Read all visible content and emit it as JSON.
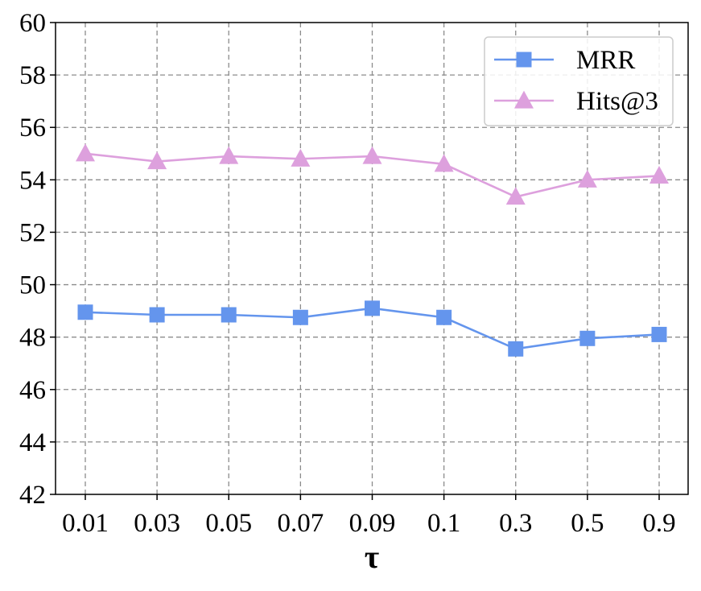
{
  "chart_data": {
    "type": "line",
    "title": "",
    "xlabel": "τ",
    "ylabel": "",
    "categories": [
      "0.01",
      "0.03",
      "0.05",
      "0.07",
      "0.09",
      "0.1",
      "0.3",
      "0.5",
      "0.9"
    ],
    "ylim": [
      42,
      60
    ],
    "yticks": [
      42,
      44,
      46,
      48,
      50,
      52,
      54,
      56,
      58,
      60
    ],
    "grid": true,
    "legend_position": "top-right",
    "series": [
      {
        "name": "MRR",
        "color": "#6495ED",
        "marker": "square",
        "values": [
          48.95,
          48.85,
          48.85,
          48.75,
          49.1,
          48.75,
          47.55,
          47.95,
          48.1
        ]
      },
      {
        "name": "Hits@3",
        "color": "#DDA0DD",
        "marker": "triangle",
        "values": [
          55.0,
          54.7,
          54.9,
          54.8,
          54.9,
          54.6,
          53.35,
          54.0,
          54.15
        ]
      }
    ]
  }
}
